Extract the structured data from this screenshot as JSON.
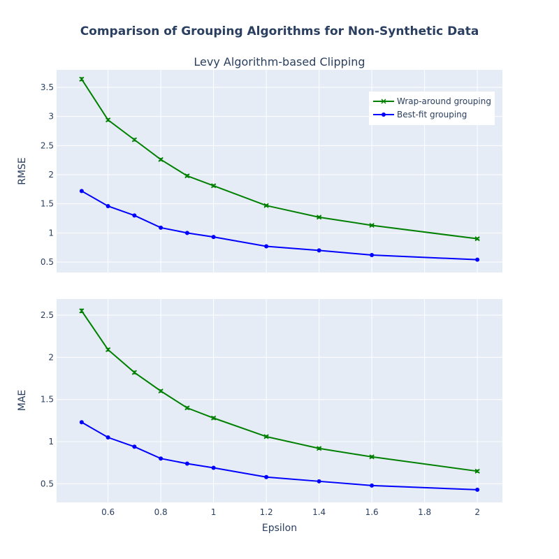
{
  "colors": {
    "plot_bg": "#e5ecf6",
    "grid": "#ffffff",
    "text": "#2a3f5f",
    "wrap_around": "#008000",
    "best_fit": "#0000ff"
  },
  "chart_data": {
    "type": "line",
    "title": "Comparison of Grouping Algorithms for Non-Synthetic Data",
    "subtitle": "Levy Algorithm-based Clipping",
    "xlabel": "Epsilon",
    "x": [
      0.5,
      0.6,
      0.7,
      0.8,
      0.9,
      1.0,
      1.2,
      1.4,
      1.6,
      2.0
    ],
    "x_ticks": [
      0.6,
      0.8,
      1,
      1.2,
      1.4,
      1.6,
      1.8,
      2
    ],
    "x_tick_labels": [
      "0.6",
      "0.8",
      "1",
      "1.2",
      "1.4",
      "1.6",
      "1.8",
      "2"
    ],
    "xlim": [
      0.405,
      2.095
    ],
    "legend": {
      "position": "top-right",
      "entries": [
        "Wrap-around grouping",
        "Best-fit grouping"
      ]
    },
    "grid": true,
    "panels": [
      {
        "ylabel": "RMSE",
        "ylim": [
          0.32,
          3.8
        ],
        "y_ticks": [
          0.5,
          1,
          1.5,
          2,
          2.5,
          3,
          3.5
        ],
        "y_tick_labels": [
          "0.5",
          "1",
          "1.5",
          "2",
          "2.5",
          "3",
          "3.5"
        ],
        "series": [
          {
            "name": "Wrap-around grouping",
            "marker": "x",
            "values": [
              3.64,
              2.94,
              2.6,
              2.26,
              1.98,
              1.81,
              1.47,
              1.27,
              1.13,
              0.9
            ],
            "errors": [
              0.025,
              0.02,
              0.02,
              0.018,
              0.018,
              0.018,
              0.015,
              0.015,
              0.015,
              0.015
            ]
          },
          {
            "name": "Best-fit grouping",
            "marker": "circle",
            "values": [
              1.72,
              1.46,
              1.3,
              1.09,
              1.0,
              0.93,
              0.77,
              0.7,
              0.62,
              0.54
            ],
            "errors": []
          }
        ]
      },
      {
        "ylabel": "MAE",
        "ylim": [
          0.28,
          2.69
        ],
        "y_ticks": [
          0.5,
          1,
          1.5,
          2,
          2.5
        ],
        "y_tick_labels": [
          "0.5",
          "1",
          "1.5",
          "2",
          "2.5"
        ],
        "series": [
          {
            "name": "Wrap-around grouping",
            "marker": "x",
            "values": [
              2.55,
              2.09,
              1.82,
              1.6,
              1.4,
              1.28,
              1.06,
              0.92,
              0.82,
              0.65
            ],
            "errors": [
              0.02,
              0.015,
              0.015,
              0.013,
              0.013,
              0.013,
              0.012,
              0.012,
              0.012,
              0.012
            ]
          },
          {
            "name": "Best-fit grouping",
            "marker": "circle",
            "values": [
              1.23,
              1.05,
              0.94,
              0.8,
              0.74,
              0.69,
              0.58,
              0.53,
              0.48,
              0.43
            ],
            "errors": []
          }
        ]
      }
    ]
  }
}
